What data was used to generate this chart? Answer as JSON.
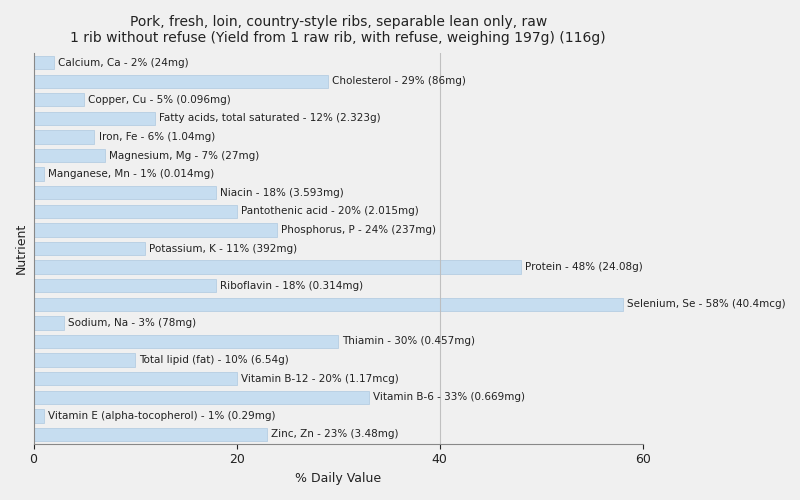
{
  "title": "Pork, fresh, loin, country-style ribs, separable lean only, raw\n1 rib without refuse (Yield from 1 raw rib, with refuse, weighing 197g) (116g)",
  "xlabel": "% Daily Value",
  "ylabel": "Nutrient",
  "nutrients": [
    "Calcium, Ca - 2% (24mg)",
    "Cholesterol - 29% (86mg)",
    "Copper, Cu - 5% (0.096mg)",
    "Fatty acids, total saturated - 12% (2.323g)",
    "Iron, Fe - 6% (1.04mg)",
    "Magnesium, Mg - 7% (27mg)",
    "Manganese, Mn - 1% (0.014mg)",
    "Niacin - 18% (3.593mg)",
    "Pantothenic acid - 20% (2.015mg)",
    "Phosphorus, P - 24% (237mg)",
    "Potassium, K - 11% (392mg)",
    "Protein - 48% (24.08g)",
    "Riboflavin - 18% (0.314mg)",
    "Selenium, Se - 58% (40.4mcg)",
    "Sodium, Na - 3% (78mg)",
    "Thiamin - 30% (0.457mg)",
    "Total lipid (fat) - 10% (6.54g)",
    "Vitamin B-12 - 20% (1.17mcg)",
    "Vitamin B-6 - 33% (0.669mg)",
    "Vitamin E (alpha-tocopherol) - 1% (0.29mg)",
    "Zinc, Zn - 23% (3.48mg)"
  ],
  "values": [
    2,
    29,
    5,
    12,
    6,
    7,
    1,
    18,
    20,
    24,
    11,
    48,
    18,
    58,
    3,
    30,
    10,
    20,
    33,
    1,
    23
  ],
  "bar_color": "#c6ddf0",
  "bar_edge_color": "#aec8e0",
  "background_color": "#f0f0f0",
  "plot_bg_color": "#f0f0f0",
  "text_color": "#222222",
  "xlim": [
    0,
    60
  ],
  "xticks": [
    0,
    20,
    40,
    60
  ],
  "figsize": [
    8.0,
    5.0
  ],
  "dpi": 100,
  "title_fontsize": 10,
  "label_fontsize": 7.5,
  "tick_fontsize": 9,
  "axis_label_fontsize": 9,
  "bar_height": 0.72
}
